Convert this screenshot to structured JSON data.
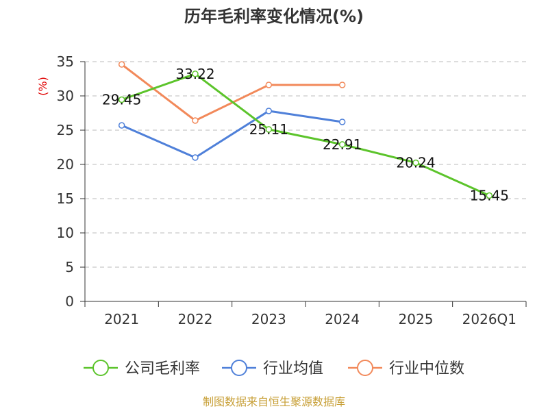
{
  "chart_data": {
    "type": "line",
    "title": "历年毛利率变化情况(%)",
    "ylabel": "(%)",
    "xlabel": "",
    "categories": [
      "2021",
      "2022",
      "2023",
      "2024",
      "2025",
      "2026Q1"
    ],
    "ylim": [
      0,
      35
    ],
    "yticks": [
      0,
      5,
      10,
      15,
      20,
      25,
      30,
      35
    ],
    "grid": true,
    "legend_position": "bottom",
    "series": [
      {
        "name": "公司毛利率",
        "color": "#5cc42b",
        "values": [
          29.45,
          33.22,
          25.11,
          22.91,
          20.24,
          15.45
        ],
        "labels": [
          "29.45",
          "33.22",
          "25.11",
          "22.91",
          "20.24",
          "15.45"
        ],
        "show_labels": true
      },
      {
        "name": "行业均值",
        "color": "#4f80d9",
        "values": [
          25.7,
          21.0,
          27.8,
          26.2,
          null,
          null
        ],
        "show_labels": false
      },
      {
        "name": "行业中位数",
        "color": "#f2895a",
        "values": [
          34.6,
          26.4,
          31.6,
          31.6,
          null,
          null
        ],
        "show_labels": false
      }
    ]
  },
  "source": "制图数据来自恒生聚源数据库"
}
